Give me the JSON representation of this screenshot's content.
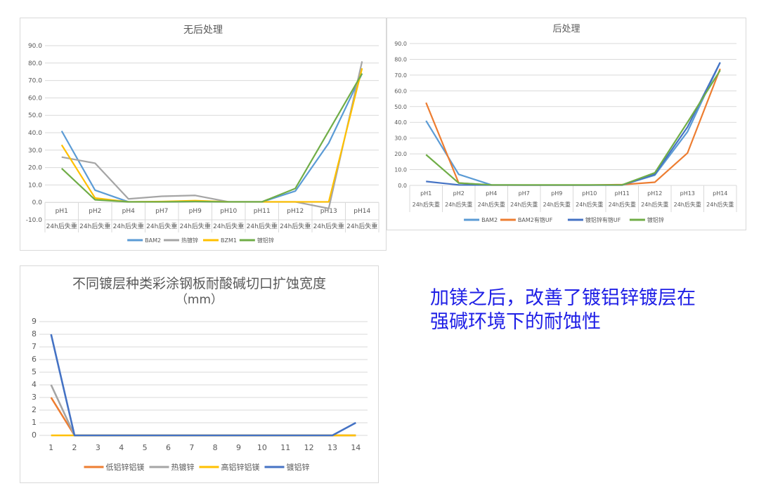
{
  "chart_data": [
    {
      "type": "line",
      "title": "无后处理",
      "categories": [
        "pH1",
        "pH2",
        "pH4",
        "pH7",
        "pH9",
        "pH10",
        "pH11",
        "pH12",
        "pH13",
        "pH14"
      ],
      "subcategory": "24h后失重",
      "ylim": [
        -10,
        90
      ],
      "yticks": [
        "-10.0",
        "0.0",
        "10.0",
        "20.0",
        "30.0",
        "40.0",
        "50.0",
        "60.0",
        "70.0",
        "80.0",
        "90.0"
      ],
      "grid": true,
      "legend": "bottom",
      "series": [
        {
          "name": "BAM2",
          "color": "#5b9bd5",
          "values": [
            41,
            7,
            0.3,
            0.3,
            0.5,
            0.3,
            0.3,
            6.5,
            34,
            74
          ]
        },
        {
          "name": "热镀锌",
          "color": "#a5a5a5",
          "values": [
            26,
            22.5,
            2,
            3.5,
            4,
            0.3,
            0.3,
            0.3,
            -3.5,
            81
          ]
        },
        {
          "name": "BZM1",
          "color": "#ffc000",
          "values": [
            33,
            2.5,
            0.3,
            0.5,
            1,
            0.3,
            0.3,
            0.3,
            0.3,
            77
          ]
        },
        {
          "name": "镀铝锌",
          "color": "#70ad47",
          "values": [
            19.5,
            1.5,
            0.3,
            0.3,
            0.5,
            0.3,
            0.3,
            8,
            41,
            74
          ]
        }
      ]
    },
    {
      "type": "line",
      "title": "后处理",
      "categories": [
        "pH1",
        "pH2",
        "pH4",
        "pH7",
        "pH9",
        "pH10",
        "pH11",
        "pH12",
        "pH13",
        "pH14"
      ],
      "subcategory": "24h后失重",
      "ylim": [
        0,
        90
      ],
      "yticks": [
        "0.0",
        "10.0",
        "20.0",
        "30.0",
        "40.0",
        "50.0",
        "60.0",
        "70.0",
        "80.0",
        "90.0"
      ],
      "grid": true,
      "legend": "bottom",
      "series": [
        {
          "name": "BAM2",
          "color": "#5b9bd5",
          "values": [
            41,
            7,
            0.3,
            0.2,
            0.2,
            0.2,
            0.2,
            6.5,
            34,
            78
          ]
        },
        {
          "name": "BAM2有铬UF",
          "color": "#ed7d31",
          "values": [
            52.5,
            1.5,
            0.2,
            0.2,
            0.2,
            0.2,
            0.5,
            2,
            20.5,
            74
          ]
        },
        {
          "name": "镀铝锌有铬UF",
          "color": "#4472c4",
          "values": [
            2.5,
            0.3,
            0.2,
            0.2,
            0.2,
            0.2,
            0.2,
            7,
            37,
            78
          ]
        },
        {
          "name": "镀铝锌",
          "color": "#70ad47",
          "values": [
            19.5,
            1.5,
            0.3,
            0.3,
            0.3,
            0.3,
            0.3,
            8,
            40,
            73
          ]
        }
      ]
    },
    {
      "type": "line",
      "title": "不同镀层种类彩涂钢板耐酸碱切口扩蚀宽度",
      "subtitle": "（mm）",
      "categories": [
        "1",
        "2",
        "3",
        "4",
        "5",
        "6",
        "7",
        "8",
        "9",
        "10",
        "11",
        "12",
        "13",
        "14"
      ],
      "ylim": [
        0,
        9
      ],
      "yticks": [
        "0",
        "1",
        "2",
        "3",
        "4",
        "5",
        "6",
        "7",
        "8",
        "9"
      ],
      "grid": true,
      "legend": "bottom",
      "series": [
        {
          "name": "低铝锌铝镁",
          "color": "#ed7d31",
          "values": [
            3,
            0,
            0,
            0,
            0,
            0,
            0,
            0,
            0,
            0,
            0,
            0,
            0,
            0
          ]
        },
        {
          "name": "热镀锌",
          "color": "#a5a5a5",
          "values": [
            4,
            0,
            0,
            0,
            0,
            0,
            0,
            0,
            0,
            0,
            0,
            0,
            0,
            0
          ]
        },
        {
          "name": "高铝锌铝镁",
          "color": "#ffc000",
          "values": [
            0,
            0,
            0,
            0,
            0,
            0,
            0,
            0,
            0,
            0,
            0,
            0,
            0,
            0
          ]
        },
        {
          "name": "镀铝锌",
          "color": "#4472c4",
          "values": [
            8,
            0,
            0,
            0,
            0,
            0,
            0,
            0,
            0,
            0,
            0,
            0,
            0,
            1
          ]
        }
      ]
    }
  ],
  "note": {
    "lines": [
      "加镁之后，改善了镀铝锌镀层在",
      "强碱环境下的耐蚀性"
    ]
  }
}
